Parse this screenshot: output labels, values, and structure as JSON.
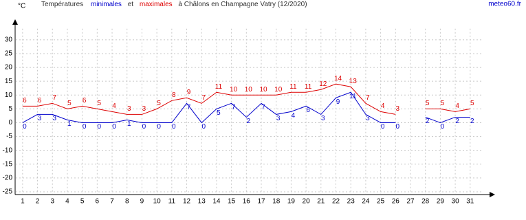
{
  "chart_data": {
    "type": "line",
    "title_prefix": "Températures",
    "title_middle": "et",
    "title_suffix": "à Châlons en Champagne Vatry (12/2020)",
    "y_label": "°C",
    "source": "meteo60.fr",
    "x": [
      1,
      2,
      3,
      4,
      5,
      6,
      7,
      8,
      9,
      10,
      11,
      12,
      13,
      14,
      15,
      16,
      17,
      18,
      19,
      20,
      21,
      22,
      23,
      24,
      25,
      26,
      27,
      28,
      29,
      30,
      31
    ],
    "xlim": [
      0.5,
      32.3
    ],
    "xticks": [
      1,
      2,
      3,
      4,
      5,
      6,
      7,
      8,
      9,
      10,
      11,
      12,
      13,
      14,
      15,
      16,
      17,
      18,
      19,
      20,
      21,
      22,
      23,
      24,
      25,
      26,
      27,
      28,
      29,
      30,
      31
    ],
    "ylim": [
      -26,
      34
    ],
    "yticks": [
      -25,
      -20,
      -15,
      -10,
      -5,
      0,
      5,
      10,
      15,
      20,
      25,
      30
    ],
    "grid": true,
    "series": [
      {
        "name": "minimales",
        "color": "#0000cc",
        "values": [
          0,
          3,
          3,
          1,
          0,
          0,
          0,
          1,
          0,
          0,
          0,
          7,
          0,
          5,
          7,
          2,
          7,
          3,
          4,
          6,
          3,
          9,
          11,
          3,
          0,
          0,
          null,
          2,
          0,
          2,
          2
        ]
      },
      {
        "name": "maximales",
        "color": "#dd0000",
        "values": [
          6,
          6,
          7,
          5,
          6,
          5,
          4,
          3,
          3,
          5,
          8,
          9,
          7,
          11,
          10,
          10,
          10,
          10,
          11,
          11,
          12,
          14,
          13,
          7,
          4,
          3,
          null,
          5,
          5,
          4,
          5
        ]
      }
    ]
  }
}
